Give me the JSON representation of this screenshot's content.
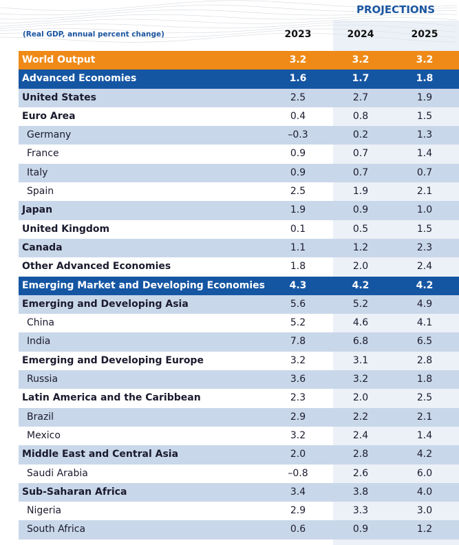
{
  "header": {
    "projections_label": "PROJECTIONS",
    "subtitle": "(Real GDP, annual percent change)",
    "years": [
      "2023",
      "2024",
      "2025"
    ]
  },
  "colors": {
    "world_row": "#ef8a18",
    "group_row": "#1556a3",
    "stripe": "#c9d7ea",
    "projection_band": "#dde6f1",
    "accent_text": "#1b56a0"
  },
  "chart_data": {
    "type": "table",
    "title": "",
    "columns": [
      "2023",
      "2024",
      "2025"
    ],
    "rows": [
      {
        "label": "World Output",
        "level": "world",
        "values": [
          "3.2",
          "3.2",
          "3.2"
        ]
      },
      {
        "label": "Advanced Economies",
        "level": "group",
        "values": [
          "1.6",
          "1.7",
          "1.8"
        ]
      },
      {
        "label": "United States",
        "level": "region",
        "values": [
          "2.5",
          "2.7",
          "1.9"
        ]
      },
      {
        "label": "Euro Area",
        "level": "region",
        "values": [
          "0.4",
          "0.8",
          "1.5"
        ]
      },
      {
        "label": "Germany",
        "level": "country",
        "values": [
          "–0.3",
          "0.2",
          "1.3"
        ]
      },
      {
        "label": "France",
        "level": "country",
        "values": [
          "0.9",
          "0.7",
          "1.4"
        ]
      },
      {
        "label": "Italy",
        "level": "country",
        "values": [
          "0.9",
          "0.7",
          "0.7"
        ]
      },
      {
        "label": "Spain",
        "level": "country",
        "values": [
          "2.5",
          "1.9",
          "2.1"
        ]
      },
      {
        "label": "Japan",
        "level": "region",
        "values": [
          "1.9",
          "0.9",
          "1.0"
        ]
      },
      {
        "label": "United Kingdom",
        "level": "region",
        "values": [
          "0.1",
          "0.5",
          "1.5"
        ]
      },
      {
        "label": "Canada",
        "level": "region",
        "values": [
          "1.1",
          "1.2",
          "2.3"
        ]
      },
      {
        "label": "Other Advanced Economies",
        "level": "region",
        "values": [
          "1.8",
          "2.0",
          "2.4"
        ]
      },
      {
        "label": "Emerging Market and Developing Economies",
        "level": "group",
        "values": [
          "4.3",
          "4.2",
          "4.2"
        ]
      },
      {
        "label": "Emerging and Developing Asia",
        "level": "region",
        "values": [
          "5.6",
          "5.2",
          "4.9"
        ]
      },
      {
        "label": "China",
        "level": "country",
        "values": [
          "5.2",
          "4.6",
          "4.1"
        ]
      },
      {
        "label": "India",
        "level": "country",
        "values": [
          "7.8",
          "6.8",
          "6.5"
        ]
      },
      {
        "label": "Emerging and Developing Europe",
        "level": "region",
        "values": [
          "3.2",
          "3.1",
          "2.8"
        ]
      },
      {
        "label": "Russia",
        "level": "country",
        "values": [
          "3.6",
          "3.2",
          "1.8"
        ]
      },
      {
        "label": "Latin America and the Caribbean",
        "level": "region",
        "values": [
          "2.3",
          "2.0",
          "2.5"
        ]
      },
      {
        "label": "Brazil",
        "level": "country",
        "values": [
          "2.9",
          "2.2",
          "2.1"
        ]
      },
      {
        "label": "Mexico",
        "level": "country",
        "values": [
          "3.2",
          "2.4",
          "1.4"
        ]
      },
      {
        "label": "Middle East and Central Asia",
        "level": "region",
        "values": [
          "2.0",
          "2.8",
          "4.2"
        ]
      },
      {
        "label": "Saudi Arabia",
        "level": "country",
        "values": [
          "–0.8",
          "2.6",
          "6.0"
        ]
      },
      {
        "label": "Sub-Saharan Africa",
        "level": "region",
        "values": [
          "3.4",
          "3.8",
          "4.0"
        ]
      },
      {
        "label": "Nigeria",
        "level": "country",
        "values": [
          "2.9",
          "3.3",
          "3.0"
        ]
      },
      {
        "label": "South Africa",
        "level": "country",
        "values": [
          "0.6",
          "0.9",
          "1.2"
        ]
      }
    ]
  }
}
